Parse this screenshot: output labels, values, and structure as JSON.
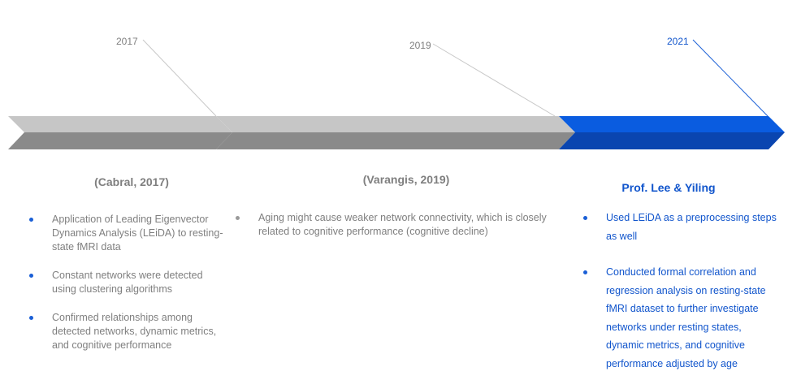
{
  "colors": {
    "gray_text": "#7f7f7f",
    "gray_arrow_top": "#c6c6c6",
    "gray_arrow_bottom": "#8a8a8a",
    "blue_text": "#1155cc",
    "blue_dot": "#1a5fd6",
    "blue_arrow_top": "#0a5ce0",
    "blue_arrow_bottom": "#0a45b0",
    "gray_dot_first": "#1a5fd6",
    "gray_dot_second": "#9a9a9a"
  },
  "milestones": [
    {
      "year": "2017",
      "heading": "(Cabral, 2017)",
      "points": [
        "Application of Leading Eigenvector Dynamics Analysis (LEiDA) to resting-state fMRI data",
        "Constant networks were detected using clustering algorithms",
        "Confirmed relationships among detected networks, dynamic metrics, and cognitive performance"
      ]
    },
    {
      "year": "2019",
      "heading": "(Varangis, 2019)",
      "points": [
        "Aging might cause weaker network connectivity, which is closely related to cognitive performance (cognitive decline)"
      ]
    },
    {
      "year": "2021",
      "heading": "Prof. Lee & Yiling",
      "points": [
        "Used LEiDA as a preprocessing steps as well",
        "Conducted formal correlation and regression analysis on resting-state fMRI dataset to further investigate networks under resting states, dynamic metrics, and cognitive performance adjusted by age"
      ]
    }
  ]
}
